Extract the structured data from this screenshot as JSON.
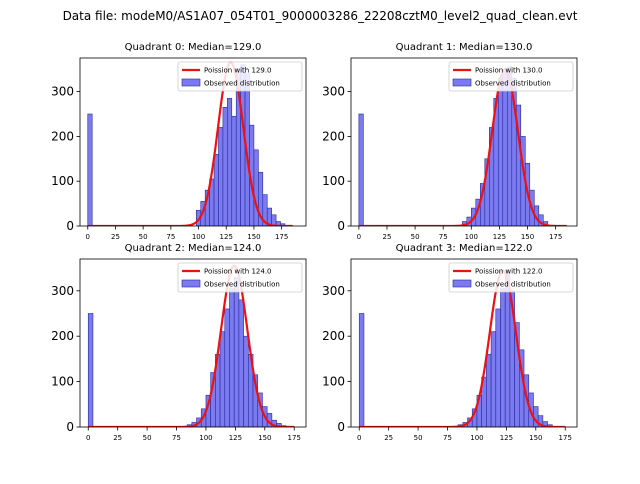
{
  "suptitle": "Data file: modeM0/AS1A07_054T01_9000003286_22208cztM0_level2_quad_clean.evt",
  "colors": {
    "bar_fill": "#7b7bef",
    "bar_edge": "#2a2aa0",
    "poisson_line": "#ee1111"
  },
  "legend": {
    "observed": "Observed distribution"
  },
  "chart_data": [
    {
      "type": "bar",
      "title": "Quadrant 0: Median=129.0",
      "poisson_label": "Poission with 129.0",
      "median": 129.0,
      "bin_width": 4,
      "xlim": [
        -7,
        197
      ],
      "ylim": [
        0,
        375
      ],
      "xticks": [
        0,
        25,
        50,
        75,
        100,
        125,
        150,
        175
      ],
      "yticks": [
        0,
        100,
        200,
        300
      ],
      "legend_position": "top-right",
      "spike": {
        "x": 0,
        "value": 250
      },
      "hist_start": 98,
      "values": [
        35,
        55,
        80,
        105,
        160,
        220,
        265,
        285,
        245,
        350,
        360,
        340,
        225,
        170,
        120,
        70,
        40,
        25,
        10,
        5
      ],
      "poisson_amplitude": 365,
      "poisson_sigma": 11.36,
      "poisson_range": [
        0,
        185
      ]
    },
    {
      "type": "bar",
      "title": "Quadrant 1: Median=130.0",
      "poisson_label": "Poission with 130.0",
      "median": 130.0,
      "bin_width": 4,
      "xlim": [
        -7,
        194
      ],
      "ylim": [
        0,
        375
      ],
      "xticks": [
        0,
        25,
        50,
        75,
        100,
        125,
        150,
        175
      ],
      "yticks": [
        0,
        100,
        200,
        300
      ],
      "legend_position": "top-right",
      "spike": {
        "x": 0,
        "value": 250
      },
      "hist_start": 92,
      "values": [
        10,
        20,
        40,
        60,
        95,
        150,
        220,
        285,
        330,
        350,
        355,
        330,
        270,
        200,
        140,
        80,
        45,
        25,
        10
      ],
      "poisson_amplitude": 350,
      "poisson_sigma": 11.4,
      "poisson_range": [
        0,
        185
      ]
    },
    {
      "type": "bar",
      "title": "Quadrant 2: Median=124.0",
      "poisson_label": "Poission with 124.0",
      "median": 124.0,
      "bin_width": 4,
      "xlim": [
        -7,
        185
      ],
      "ylim": [
        0,
        370
      ],
      "xticks": [
        0,
        25,
        50,
        75,
        100,
        125,
        150,
        175
      ],
      "yticks": [
        0,
        100,
        200,
        300
      ],
      "legend_position": "top-right",
      "spike": {
        "x": 0,
        "value": 250
      },
      "hist_start": 84,
      "values": [
        5,
        10,
        20,
        40,
        70,
        120,
        160,
        210,
        260,
        305,
        330,
        280,
        200,
        160,
        115,
        75,
        45,
        30,
        15,
        8,
        3
      ],
      "poisson_amplitude": 355,
      "poisson_sigma": 11.14,
      "poisson_range": [
        0,
        175
      ]
    },
    {
      "type": "bar",
      "title": "Quadrant 3: Median=122.0",
      "poisson_label": "Poission with 122.0",
      "median": 122.0,
      "bin_width": 4,
      "xlim": [
        -7,
        185
      ],
      "ylim": [
        0,
        370
      ],
      "xticks": [
        0,
        25,
        50,
        75,
        100,
        125,
        150,
        175
      ],
      "yticks": [
        0,
        100,
        200,
        300
      ],
      "legend_position": "top-right",
      "spike": {
        "x": 0,
        "value": 250
      },
      "hist_start": 84,
      "values": [
        5,
        10,
        20,
        40,
        70,
        110,
        160,
        210,
        260,
        305,
        345,
        300,
        230,
        170,
        115,
        75,
        45,
        25,
        12,
        5
      ],
      "poisson_amplitude": 345,
      "poisson_sigma": 11.05,
      "poisson_range": [
        0,
        175
      ]
    }
  ]
}
